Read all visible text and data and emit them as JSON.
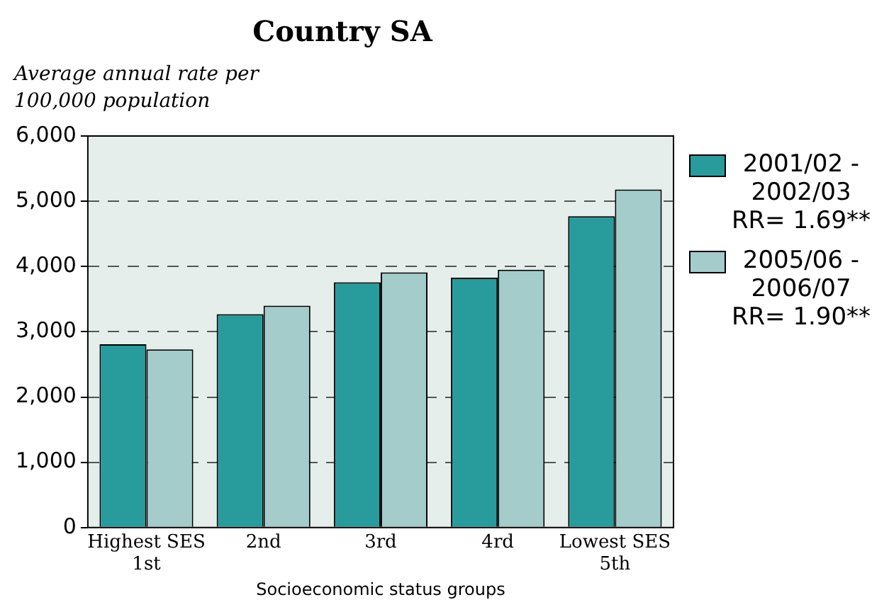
{
  "chart_data": {
    "type": "bar",
    "title": "Country SA",
    "ylabel": "Average annual rate per 100,000 population",
    "xlabel": "Socioeconomic status groups",
    "categories": [
      "Highest SES\n1st",
      "2nd",
      "3rd",
      "4rd",
      "Lowest SES\n5th"
    ],
    "series": [
      {
        "name": "2001/02 - 2002/03 RR= 1.69**",
        "color": "#289b9c",
        "values": [
          2810,
          3270,
          3760,
          3830,
          4770
        ]
      },
      {
        "name": "2005/06 - 2006/07 RR= 1.90**",
        "color": "#a3cccb",
        "values": [
          2730,
          3400,
          3910,
          3950,
          5180
        ]
      }
    ],
    "ylim": [
      0,
      6000
    ],
    "yticks": [
      {
        "value": 0,
        "label": "0"
      },
      {
        "value": 1000,
        "label": "1,000"
      },
      {
        "value": 2000,
        "label": "2,000"
      },
      {
        "value": 3000,
        "label": "3,000"
      },
      {
        "value": 4000,
        "label": "4,000"
      },
      {
        "value": 5000,
        "label": "5,000"
      },
      {
        "value": 6000,
        "label": "6,000"
      }
    ],
    "grid": "y",
    "legend": "right"
  }
}
